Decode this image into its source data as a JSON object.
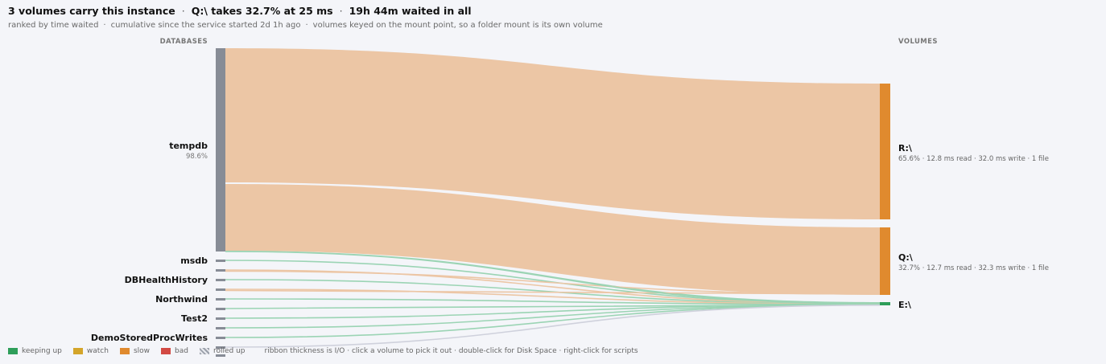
{
  "header": {
    "headline_parts": [
      "3 volumes carry this instance",
      "Q:\\ takes 32.7% at 25 ms",
      "19h 44m waited in all"
    ],
    "subline_parts": [
      "ranked by time waited",
      "cumulative since the service started 2d 1h ago",
      "volumes keyed on the mount point, so a folder mount is its own volume"
    ]
  },
  "columns": {
    "left": "DATABASES",
    "right": "VOLUMES"
  },
  "databases": [
    {
      "name": "tempdb",
      "pct": "98.6%"
    },
    {
      "name": "msdb"
    },
    {
      "name": "DBHealthHistory"
    },
    {
      "name": "Northwind"
    },
    {
      "name": "Test2"
    },
    {
      "name": "DemoStoredProcWrites"
    }
  ],
  "volumes": [
    {
      "name": "R:\\",
      "stats": "65.6% · 12.8 ms read · 32.0 ms write · 1 file",
      "status": "slow"
    },
    {
      "name": "Q:\\",
      "stats": "32.7% · 12.7 ms read · 32.3 ms write · 1 file",
      "status": "slow"
    },
    {
      "name": "E:\\",
      "stats": "",
      "status": "keeping up"
    }
  ],
  "legend": {
    "items": [
      {
        "label": "keeping up",
        "color": "#2e9e5a"
      },
      {
        "label": "watch",
        "color": "#d4a52a"
      },
      {
        "label": "slow",
        "color": "#e08a2e"
      },
      {
        "label": "bad",
        "color": "#d24a44"
      },
      {
        "label": "rolled up",
        "pattern": "hatch"
      }
    ],
    "hint": "ribbon thickness is I/O · click a volume to pick it out · double-click for Disk Space · right-click for scripts"
  },
  "colors": {
    "keeping_up": "#2e9e5a",
    "watch": "#d4a52a",
    "slow": "#e08a2e",
    "bad": "#d24a44",
    "db_node": "#878c96",
    "ribbon_slow": "#ecc6a5",
    "ribbon_ok": "#9bd4b4",
    "ribbon_rolled": "#cfd1dc"
  }
}
